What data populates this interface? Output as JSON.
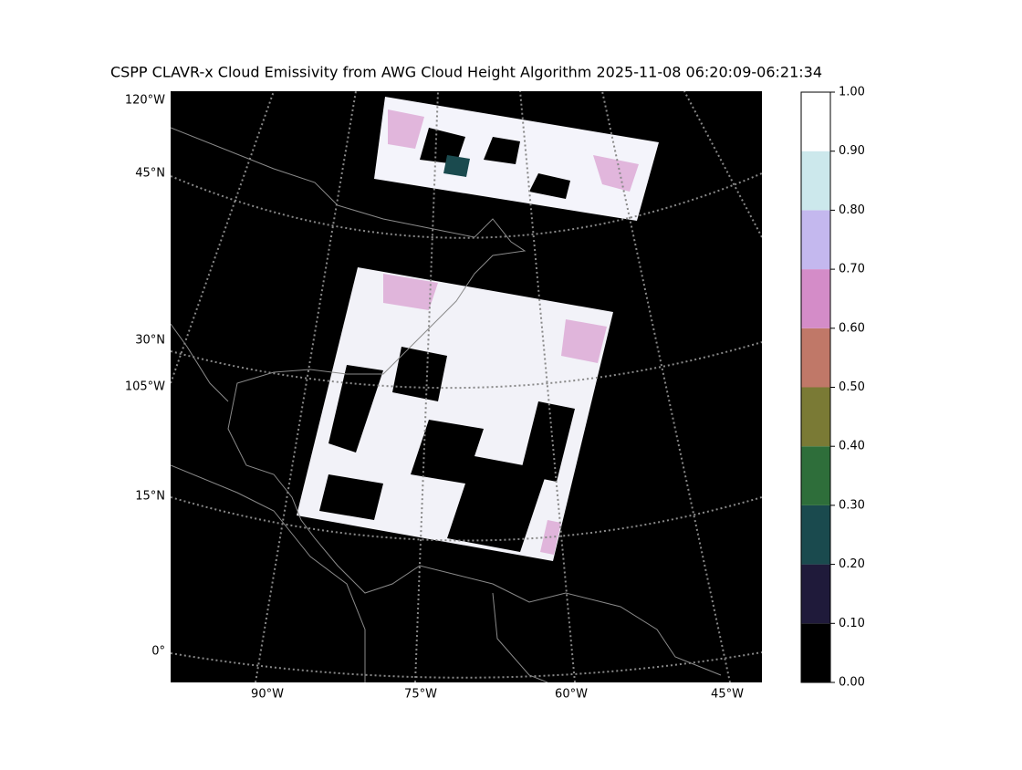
{
  "title": "CSPP CLAVR-x Cloud Emissivity from AWG Cloud Height Algorithm 2025-11-08 06:20:09-06:21:34",
  "map": {
    "left_labels": [
      "120°W",
      "45°N",
      "30°N",
      "105°W",
      "15°N",
      "0°"
    ],
    "bottom_labels": [
      "90°W",
      "75°W",
      "60°W",
      "45°W"
    ]
  },
  "colorbar": {
    "ticks": [
      {
        "value": 0,
        "label": "0.00"
      },
      {
        "value": 0.1,
        "label": "0.10"
      },
      {
        "value": 0.2,
        "label": "0.20"
      },
      {
        "value": 0.3,
        "label": "0.30"
      },
      {
        "value": 0.4,
        "label": "0.40"
      },
      {
        "value": 0.5,
        "label": "0.50"
      },
      {
        "value": 0.6,
        "label": "0.60"
      },
      {
        "value": 0.7,
        "label": "0.70"
      },
      {
        "value": 0.8,
        "label": "0.80"
      },
      {
        "value": 0.9,
        "label": "0.90"
      },
      {
        "value": 1,
        "label": "1.00"
      }
    ],
    "colors": [
      "#000000",
      "#1f1a3a",
      "#1a4a4e",
      "#2e6e3a",
      "#7a7a35",
      "#c07868",
      "#d48cc8",
      "#c4b8ee",
      "#cce8ec",
      "#ffffff"
    ],
    "lim": [
      0,
      1
    ]
  }
}
